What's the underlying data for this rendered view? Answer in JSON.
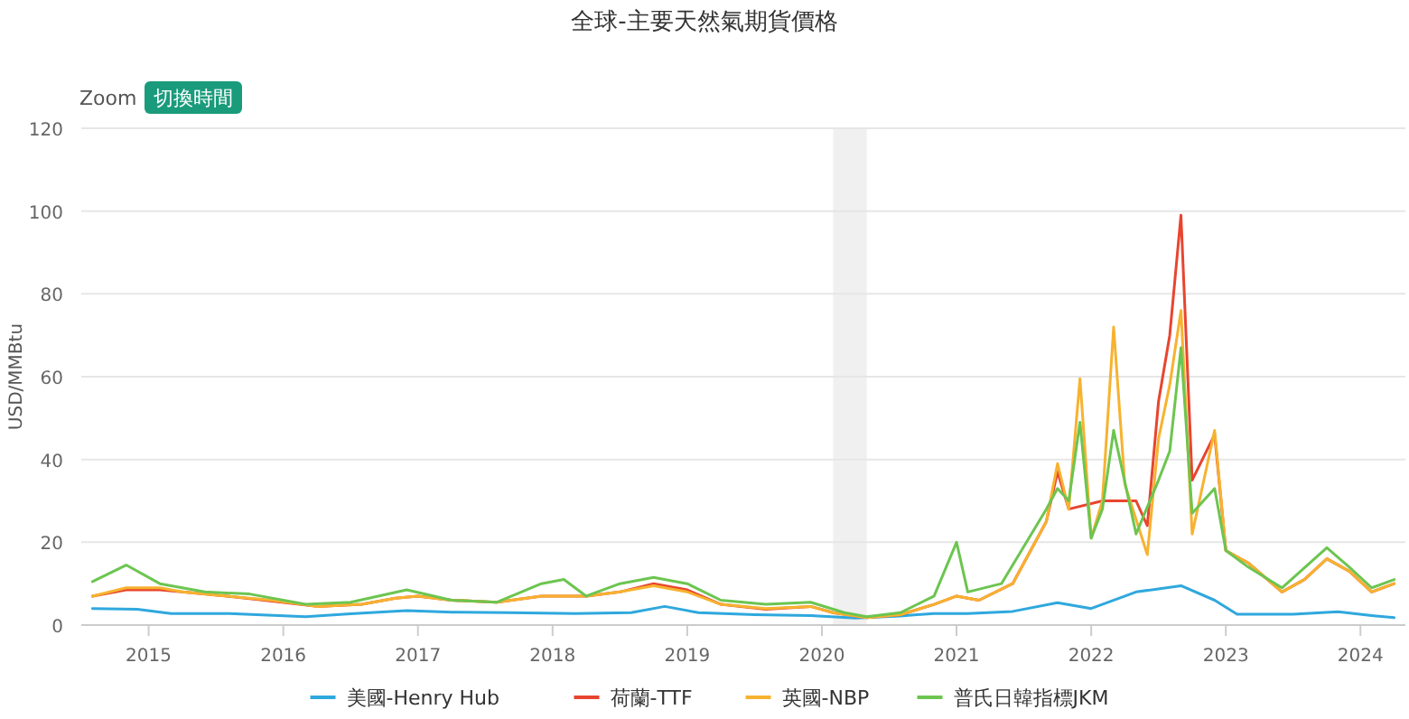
{
  "chart_data": {
    "type": "line",
    "title": "全球-主要天然氣期貨價格",
    "ylabel": "USD/MMBtu",
    "annotations": [
      "Zoom",
      "切換時間"
    ],
    "xlim": [
      "2014-07",
      "2024-05"
    ],
    "xticks": [
      {
        "value": "2015-01",
        "label": "2015"
      },
      {
        "value": "2016-01",
        "label": "2016"
      },
      {
        "value": "2017-01",
        "label": "2017"
      },
      {
        "value": "2018-01",
        "label": "2018"
      },
      {
        "value": "2019-01",
        "label": "2019"
      },
      {
        "value": "2020-01",
        "label": "2020"
      },
      {
        "value": "2021-01",
        "label": "2021"
      },
      {
        "value": "2022-01",
        "label": "2022"
      },
      {
        "value": "2023-01",
        "label": "2023"
      },
      {
        "value": "2024-01",
        "label": "2024"
      }
    ],
    "ylim": [
      0,
      120
    ],
    "yticks": [
      0,
      20,
      40,
      60,
      80,
      100,
      120
    ],
    "grid": "y",
    "legend": "bottom",
    "marker": "none",
    "line_style": "solid",
    "bands": [
      {
        "axis": "x",
        "from": "2020-02",
        "to": "2020-05",
        "color": "#f0f0f0"
      }
    ],
    "series": [
      {
        "name": "美國-Henry Hub",
        "color": "#2fa8dd",
        "x": [
          "2014-08",
          "2014-12",
          "2015-03",
          "2015-08",
          "2016-03",
          "2016-07",
          "2016-12",
          "2017-04",
          "2017-09",
          "2018-03",
          "2018-08",
          "2018-11",
          "2019-02",
          "2019-07",
          "2019-12",
          "2020-04",
          "2020-08",
          "2020-11",
          "2021-02",
          "2021-06",
          "2021-10",
          "2022-01",
          "2022-05",
          "2022-09",
          "2022-12",
          "2023-02",
          "2023-07",
          "2023-11",
          "2024-02",
          "2024-04"
        ],
        "values": [
          4,
          3.8,
          2.8,
          2.8,
          2,
          2.7,
          3.5,
          3.1,
          3,
          2.8,
          3,
          4.5,
          3,
          2.5,
          2.3,
          1.7,
          2.2,
          2.8,
          2.8,
          3.3,
          5.4,
          4,
          8,
          9.5,
          6,
          2.6,
          2.6,
          3.2,
          2.3,
          1.8
        ]
      },
      {
        "name": "荷蘭-TTF",
        "color": "#e8452f",
        "x": [
          "2014-08",
          "2014-11",
          "2015-02",
          "2015-04",
          "2015-08",
          "2015-12",
          "2016-04",
          "2016-08",
          "2016-11",
          "2017-01",
          "2017-04",
          "2017-08",
          "2017-12",
          "2018-04",
          "2018-07",
          "2018-10",
          "2019-01",
          "2019-04",
          "2019-08",
          "2019-12",
          "2020-02",
          "2020-05",
          "2020-08",
          "2020-11",
          "2021-01",
          "2021-03",
          "2021-06",
          "2021-09",
          "2021-10",
          "2021-11",
          "2022-02",
          "2022-05",
          "2022-06",
          "2022-07",
          "2022-08",
          "2022-09",
          "2022-10",
          "2022-12",
          "2023-01",
          "2023-03",
          "2023-06",
          "2023-08",
          "2023-10",
          "2023-12",
          "2024-02",
          "2024-04"
        ],
        "values": [
          7,
          8.5,
          8.5,
          8,
          7,
          5.8,
          4.5,
          5,
          6.5,
          7,
          6,
          5.5,
          7,
          7,
          8,
          10,
          8.5,
          5,
          3.8,
          4.5,
          3,
          1.8,
          2.5,
          5,
          7,
          6,
          10,
          25,
          37,
          28,
          30,
          30,
          24,
          54,
          70,
          99,
          35,
          46,
          18,
          15,
          8,
          11,
          16,
          13,
          8,
          10
        ]
      },
      {
        "name": "英國-NBP",
        "color": "#f7b22f",
        "x": [
          "2014-08",
          "2014-11",
          "2015-02",
          "2015-04",
          "2015-08",
          "2015-12",
          "2016-04",
          "2016-08",
          "2016-11",
          "2017-01",
          "2017-04",
          "2017-08",
          "2017-12",
          "2018-04",
          "2018-07",
          "2018-10",
          "2019-01",
          "2019-04",
          "2019-08",
          "2019-12",
          "2020-02",
          "2020-05",
          "2020-08",
          "2020-11",
          "2021-01",
          "2021-03",
          "2021-06",
          "2021-09",
          "2021-10",
          "2021-11",
          "2021-12",
          "2022-01",
          "2022-02",
          "2022-03",
          "2022-04",
          "2022-06",
          "2022-07",
          "2022-08",
          "2022-09",
          "2022-10",
          "2022-12",
          "2023-01",
          "2023-03",
          "2023-06",
          "2023-08",
          "2023-10",
          "2023-12",
          "2024-02",
          "2024-04"
        ],
        "values": [
          7,
          9,
          9,
          8,
          7,
          6,
          4.5,
          5,
          6.5,
          7,
          6,
          5.5,
          7,
          7,
          8,
          9.5,
          8,
          5,
          4,
          4.5,
          3,
          1.8,
          2.5,
          5,
          7,
          6,
          10,
          25,
          39,
          28,
          59.5,
          21,
          30,
          72,
          34,
          17,
          45,
          58,
          76,
          22,
          47,
          18,
          15,
          8,
          11,
          16,
          13,
          8,
          10
        ]
      },
      {
        "name": "普氏日韓指標JKM",
        "color": "#6cc550",
        "x": [
          "2014-08",
          "2014-11",
          "2015-02",
          "2015-06",
          "2015-10",
          "2016-03",
          "2016-07",
          "2016-12",
          "2017-04",
          "2017-08",
          "2017-12",
          "2018-02",
          "2018-04",
          "2018-07",
          "2018-10",
          "2019-01",
          "2019-04",
          "2019-08",
          "2019-12",
          "2020-03",
          "2020-05",
          "2020-08",
          "2020-11",
          "2021-01",
          "2021-02",
          "2021-05",
          "2021-09",
          "2021-10",
          "2021-11",
          "2021-12",
          "2022-01",
          "2022-02",
          "2022-03",
          "2022-05",
          "2022-07",
          "2022-08",
          "2022-09",
          "2022-10",
          "2022-12",
          "2023-01",
          "2023-03",
          "2023-06",
          "2023-10",
          "2023-12",
          "2024-02",
          "2024-04"
        ],
        "values": [
          10.5,
          14.5,
          10,
          8,
          7.5,
          5,
          5.5,
          8.5,
          6,
          5.5,
          10,
          11,
          7,
          10,
          11.5,
          10,
          6,
          5,
          5.5,
          3,
          2,
          3,
          7,
          20,
          8,
          10,
          28,
          33,
          30,
          49,
          21,
          28,
          47,
          22,
          35,
          42,
          67,
          27,
          33,
          18,
          14,
          9,
          18.7,
          14,
          9,
          11
        ]
      }
    ]
  }
}
